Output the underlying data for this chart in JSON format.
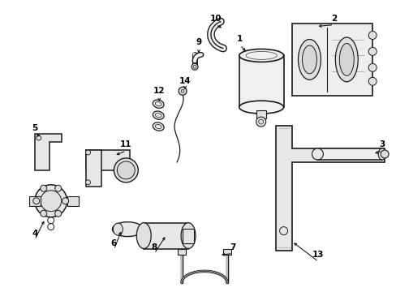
{
  "bg_color": "#ffffff",
  "line_color": "#1a1a1a",
  "label_color": "#000000",
  "figsize": [
    4.89,
    3.6
  ],
  "dpi": 100
}
